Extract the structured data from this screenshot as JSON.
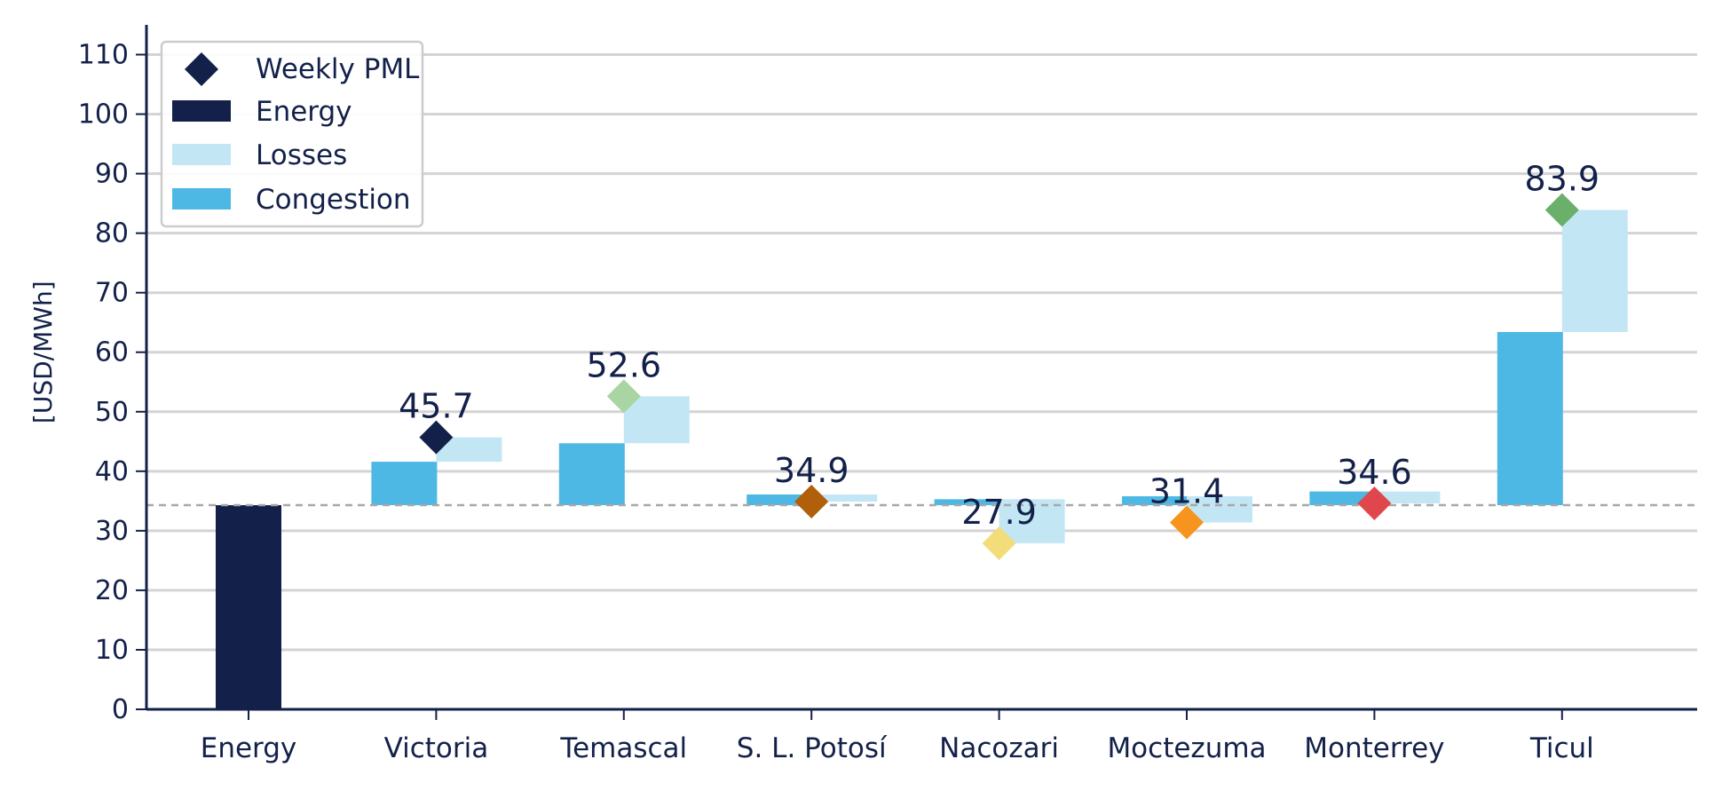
{
  "chart_data": {
    "type": "bar",
    "subtype": "waterfall",
    "ylabel": "[USD/MWh]",
    "ylim": [
      0,
      115
    ],
    "yticks": [
      0,
      10,
      20,
      30,
      40,
      50,
      60,
      70,
      80,
      90,
      100,
      110
    ],
    "grid": "horizontal",
    "legend_position": "top-left",
    "reference_line": {
      "value": 34.3,
      "style": "dashed"
    },
    "categories": [
      "Energy",
      "Victoria",
      "Temascal",
      "S. L. Potosí",
      "Nacozari",
      "Moctezuma",
      "Monterrey",
      "Ticul"
    ],
    "energy": 34.3,
    "congestion": [
      null,
      7.3,
      10.4,
      1.8,
      1.0,
      1.5,
      2.3,
      29.1
    ],
    "losses": [
      null,
      4.1,
      7.9,
      -1.2,
      -7.4,
      -4.4,
      -2.0,
      20.5
    ],
    "weekly_pml": [
      null,
      45.7,
      52.6,
      34.9,
      27.9,
      31.4,
      34.6,
      83.9
    ],
    "weekly_pml_labels": [
      "",
      "45.7",
      "52.6",
      "34.9",
      "27.9",
      "31.4",
      "34.6",
      "83.9"
    ],
    "marker_colors": [
      null,
      "#13214a",
      "#a8d5a2",
      "#b05f0a",
      "#f3dc7a",
      "#f7941d",
      "#e0474c",
      "#6ab06a"
    ],
    "legend": {
      "weekly_pml": "Weekly PML",
      "energy": "Energy",
      "losses": "Losses",
      "congestion": "Congestion"
    },
    "colors": {
      "energy": "#13214a",
      "losses": "#c3e6f5",
      "congestion": "#4db8e4",
      "grid": "#d3d3d3",
      "axis": "#13214a",
      "reference": "#a8a8a8"
    }
  }
}
